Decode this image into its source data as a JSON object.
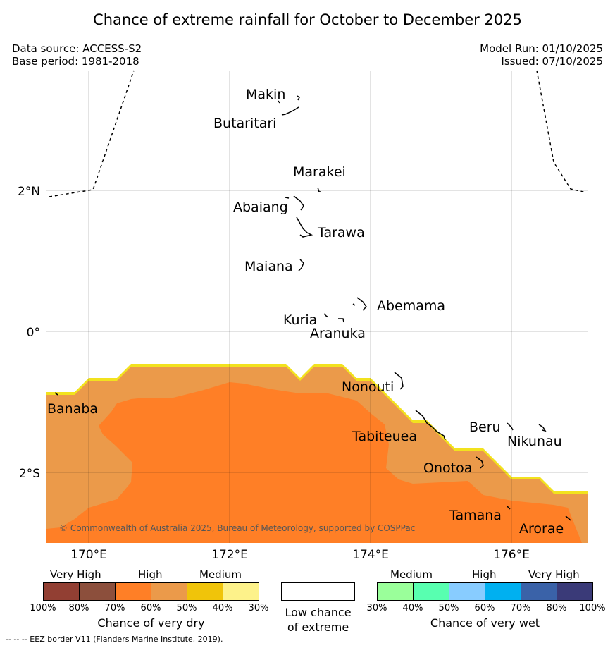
{
  "title": "Chance of extreme rainfall for October to December 2025",
  "data_source": "Data source: ACCESS-S2",
  "base_period": "Base period: 1981-2018",
  "model_run": "Model Run: 01/10/2025",
  "issued": "Issued: 07/10/2025",
  "copyright": "© Commonwealth of Australia 2025, Bureau of Meteorology, supported by COSPPac",
  "footer": "--  --  -- EEZ border V11 (Flanders Marine Institute, 2019).",
  "axes": {
    "lon_ticks": [
      "170°E",
      "172°E",
      "174°E",
      "176°E"
    ],
    "lat_ticks": [
      "2°N",
      "0°",
      "2°S"
    ]
  },
  "islands": {
    "makin": "Makin",
    "butaritari": "Butaritari",
    "marakei": "Marakei",
    "abaiang": "Abaiang",
    "tarawa": "Tarawa",
    "maiana": "Maiana",
    "abemama": "Abemama",
    "kuria": "Kuria",
    "aranuka": "Aranuka",
    "nonouti": "Nonouti",
    "banaba": "Banaba",
    "tabiteuea": "Tabiteuea",
    "beru": "Beru",
    "nikunau": "Nikunau",
    "onotoa": "Onotoa",
    "tamana": "Tamana",
    "arorae": "Arorae"
  },
  "legend": {
    "dry": {
      "categories": [
        "Very High",
        "High",
        "Medium"
      ],
      "percents": [
        "100%",
        "80%",
        "70%",
        "60%",
        "50%",
        "40%",
        "30%"
      ],
      "colors": [
        "#923f33",
        "#8c4f3c",
        "#ff7f26",
        "#eb9a4a",
        "#f0c40a",
        "#fdf28a"
      ],
      "title": "Chance of very dry"
    },
    "low": {
      "title_line1": "Low chance",
      "title_line2": "of extreme"
    },
    "wet": {
      "categories": [
        "Medium",
        "High",
        "Very High"
      ],
      "percents": [
        "30%",
        "40%",
        "50%",
        "60%",
        "70%",
        "80%",
        "100%"
      ],
      "colors": [
        "#9aff9a",
        "#58ffb0",
        "#88ccff",
        "#00b0f0",
        "#3a62a8",
        "#3a3a78"
      ],
      "title": "Chance of very wet"
    }
  },
  "colors": {
    "dry_high": "#ff7f26",
    "dry_medium_high": "#eb9a4a",
    "dry_low_edge": "#f2e21e"
  }
}
